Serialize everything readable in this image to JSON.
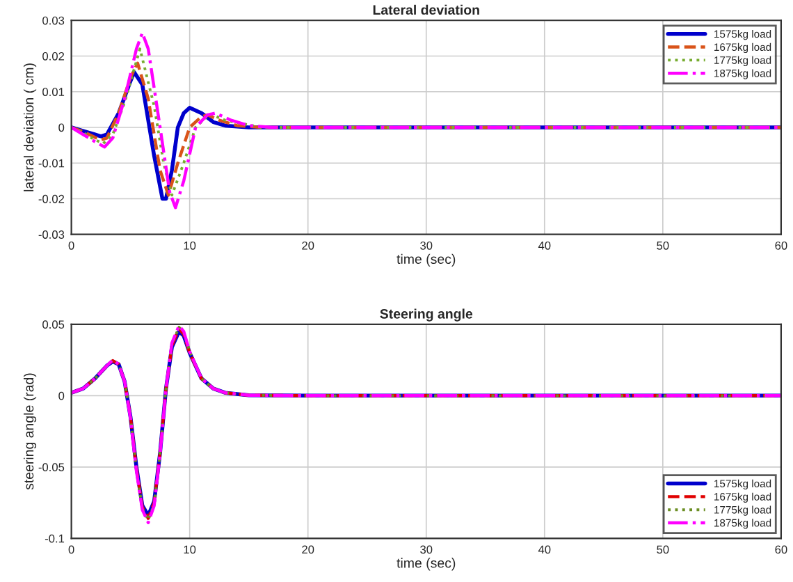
{
  "chart_data": [
    {
      "type": "line",
      "title": "Lateral deviation",
      "xlabel": "time (sec)",
      "ylabel": "lateral deviation ( cm)",
      "xlim": [
        0,
        60
      ],
      "xticks": [
        0,
        10,
        20,
        30,
        40,
        50,
        60
      ],
      "ylim": [
        -0.03,
        0.03
      ],
      "yticks": [
        -0.03,
        -0.02,
        -0.01,
        0,
        0.01,
        0.02,
        0.03
      ],
      "grid": true,
      "legend": "top right",
      "series": [
        {
          "name": "1575kg load",
          "color": "#0000cc",
          "line_style": "solid",
          "x": [
            0,
            1,
            2,
            2.5,
            3,
            4,
            5,
            5.3,
            6,
            7,
            7.7,
            8,
            8.5,
            9,
            9.5,
            10,
            11,
            12,
            13,
            15,
            60
          ],
          "values": [
            0,
            -0.001,
            -0.002,
            -0.0025,
            -0.002,
            0.004,
            0.013,
            0.0155,
            0.012,
            -0.008,
            -0.02,
            -0.02,
            -0.012,
            0.0,
            0.004,
            0.0055,
            0.004,
            0.0015,
            0.0005,
            0,
            0
          ]
        },
        {
          "name": "1675kg load",
          "color": "#d95319",
          "line_style": "dashed",
          "x": [
            0,
            1,
            2,
            2.5,
            3,
            4,
            5,
            5.6,
            6.5,
            7.5,
            8.2,
            9,
            10,
            11,
            11.5,
            12.5,
            14,
            16,
            60
          ],
          "values": [
            0,
            -0.0012,
            -0.0028,
            -0.0035,
            -0.003,
            0.004,
            0.014,
            0.018,
            0.008,
            -0.012,
            -0.019,
            -0.01,
            0,
            0.003,
            0.0035,
            0.002,
            0.0005,
            0,
            0
          ]
        },
        {
          "name": "1775kg load",
          "color": "#77ac30",
          "line_style": "dotted",
          "x": [
            0,
            1,
            2,
            2.7,
            3.5,
            4.5,
            5.8,
            7,
            7.8,
            8.5,
            9.5,
            10.5,
            11.7,
            13,
            16,
            60
          ],
          "values": [
            0,
            -0.0015,
            -0.0035,
            -0.0045,
            -0.002,
            0.007,
            0.022,
            0.006,
            -0.01,
            -0.019,
            -0.01,
            0,
            0.0038,
            0.002,
            0,
            0
          ]
        },
        {
          "name": "1875kg load",
          "color": "#ff00ff",
          "line_style": "dashdot",
          "x": [
            0,
            1,
            2,
            2.8,
            3.5,
            4.5,
            5.5,
            6,
            6.5,
            7.5,
            8.3,
            8.8,
            9.5,
            10.5,
            11.5,
            12.2,
            13.5,
            15,
            17,
            60
          ],
          "values": [
            0,
            -0.002,
            -0.004,
            -0.0055,
            -0.003,
            0.008,
            0.022,
            0.0265,
            0.022,
            0.0,
            -0.018,
            -0.0225,
            -0.015,
            0.0,
            0.0035,
            0.004,
            0.002,
            0.0005,
            0,
            0
          ]
        }
      ]
    },
    {
      "type": "line",
      "title": "Steering angle",
      "xlabel": "time (sec)",
      "ylabel": "steering angle (rad)",
      "xlim": [
        0,
        60
      ],
      "xticks": [
        0,
        10,
        20,
        30,
        40,
        50,
        60
      ],
      "ylim": [
        -0.1,
        0.05
      ],
      "yticks": [
        -0.1,
        -0.05,
        0,
        0.05
      ],
      "grid": true,
      "legend": "lower right",
      "series": [
        {
          "name": "1575kg load",
          "color": "#0000cc",
          "line_style": "solid",
          "x": [
            0,
            1,
            2,
            3,
            3.5,
            4,
            4.5,
            5,
            5.5,
            6,
            6.5,
            7,
            7.5,
            8,
            8.5,
            9.1,
            9.5,
            10,
            11,
            12,
            13,
            15,
            20,
            60
          ],
          "values": [
            0.002,
            0.005,
            0.012,
            0.021,
            0.024,
            0.022,
            0.01,
            -0.015,
            -0.05,
            -0.077,
            -0.084,
            -0.074,
            -0.04,
            0.005,
            0.034,
            0.045,
            0.042,
            0.03,
            0.012,
            0.005,
            0.002,
            0.0003,
            0,
            0
          ]
        },
        {
          "name": "1675kg load",
          "color": "#e00000",
          "line_style": "dashed",
          "x": [
            0,
            1,
            2,
            3,
            3.5,
            4,
            4.5,
            5,
            5.5,
            6,
            6.5,
            7,
            7.5,
            8,
            8.5,
            9.1,
            9.5,
            10,
            11,
            12,
            13,
            15,
            20,
            60
          ],
          "values": [
            0.002,
            0.005,
            0.012,
            0.021,
            0.0245,
            0.022,
            0.01,
            -0.015,
            -0.051,
            -0.078,
            -0.086,
            -0.075,
            -0.04,
            0.005,
            0.035,
            0.047,
            0.043,
            0.03,
            0.012,
            0.005,
            0.002,
            0.0003,
            0,
            0
          ]
        },
        {
          "name": "1775kg load",
          "color": "#6b8e23",
          "line_style": "dotted",
          "x": [
            0,
            1,
            2,
            3,
            3.5,
            4,
            4.5,
            5,
            5.5,
            6,
            6.5,
            7,
            7.5,
            8,
            8.5,
            9.1,
            9.5,
            10,
            11,
            12,
            13,
            15,
            20,
            60
          ],
          "values": [
            0.002,
            0.005,
            0.012,
            0.021,
            0.025,
            0.022,
            0.01,
            -0.015,
            -0.052,
            -0.079,
            -0.087,
            -0.076,
            -0.04,
            0.005,
            0.036,
            0.048,
            0.044,
            0.031,
            0.012,
            0.005,
            0.002,
            0.0003,
            0,
            0
          ]
        },
        {
          "name": "1875kg load",
          "color": "#ff00ff",
          "line_style": "dashdot",
          "x": [
            0,
            1,
            2,
            3,
            3.5,
            4,
            4.5,
            5,
            5.5,
            6,
            6.5,
            7,
            7.5,
            8,
            8.5,
            9.1,
            9.5,
            10,
            11,
            12,
            13,
            15,
            20,
            60
          ],
          "values": [
            0.002,
            0.005,
            0.012,
            0.021,
            0.025,
            0.022,
            0.01,
            -0.016,
            -0.053,
            -0.08,
            -0.089,
            -0.077,
            -0.041,
            0.005,
            0.037,
            0.049,
            0.045,
            0.031,
            0.012,
            0.005,
            0.002,
            0.0003,
            0,
            0
          ]
        }
      ]
    }
  ]
}
